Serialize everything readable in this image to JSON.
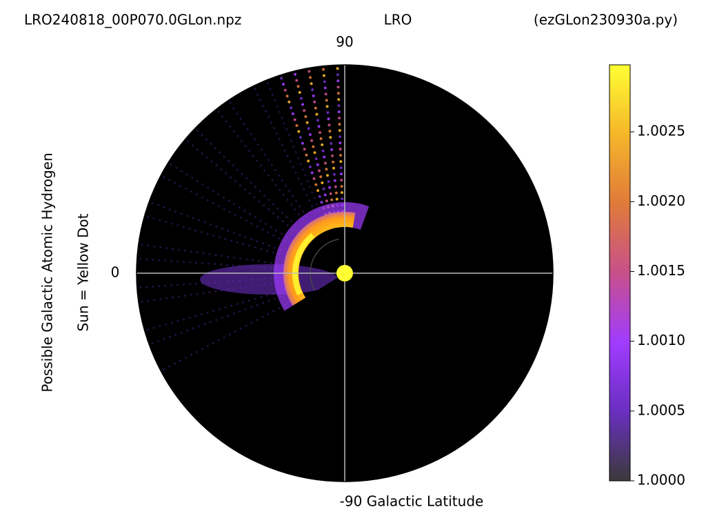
{
  "chart_data": {
    "type": "polar",
    "title_left": "LRO240818_00P070.0GLon.npz",
    "title_center": "LRO",
    "title_right": "(ezGLon230930a.py)",
    "angle_labels": [
      "90",
      "0",
      "-90 Galactic Latitude"
    ],
    "ylabel": "Possible Galactic Atomic Hydrogen",
    "ylabel2": "Sun = Yellow Dot",
    "sun_color": "#ffff33",
    "background": "#000000",
    "grid": true,
    "colorbar": {
      "clim": [
        1.0,
        1.00298
      ],
      "ticks": [
        {
          "value": 1.0,
          "label": "1.0000"
        },
        {
          "value": 1.0005,
          "label": "1.0005"
        },
        {
          "value": 1.001,
          "label": "1.0010"
        },
        {
          "value": 1.0015,
          "label": "1.0015"
        },
        {
          "value": 1.002,
          "label": "1.0020"
        },
        {
          "value": 1.0025,
          "label": "1.0025"
        }
      ],
      "colors": [
        "#3a3a3a",
        "#6a2fc0",
        "#a03cff",
        "#c8508a",
        "#e07a3a",
        "#f5b62a",
        "#ffff33"
      ]
    }
  }
}
